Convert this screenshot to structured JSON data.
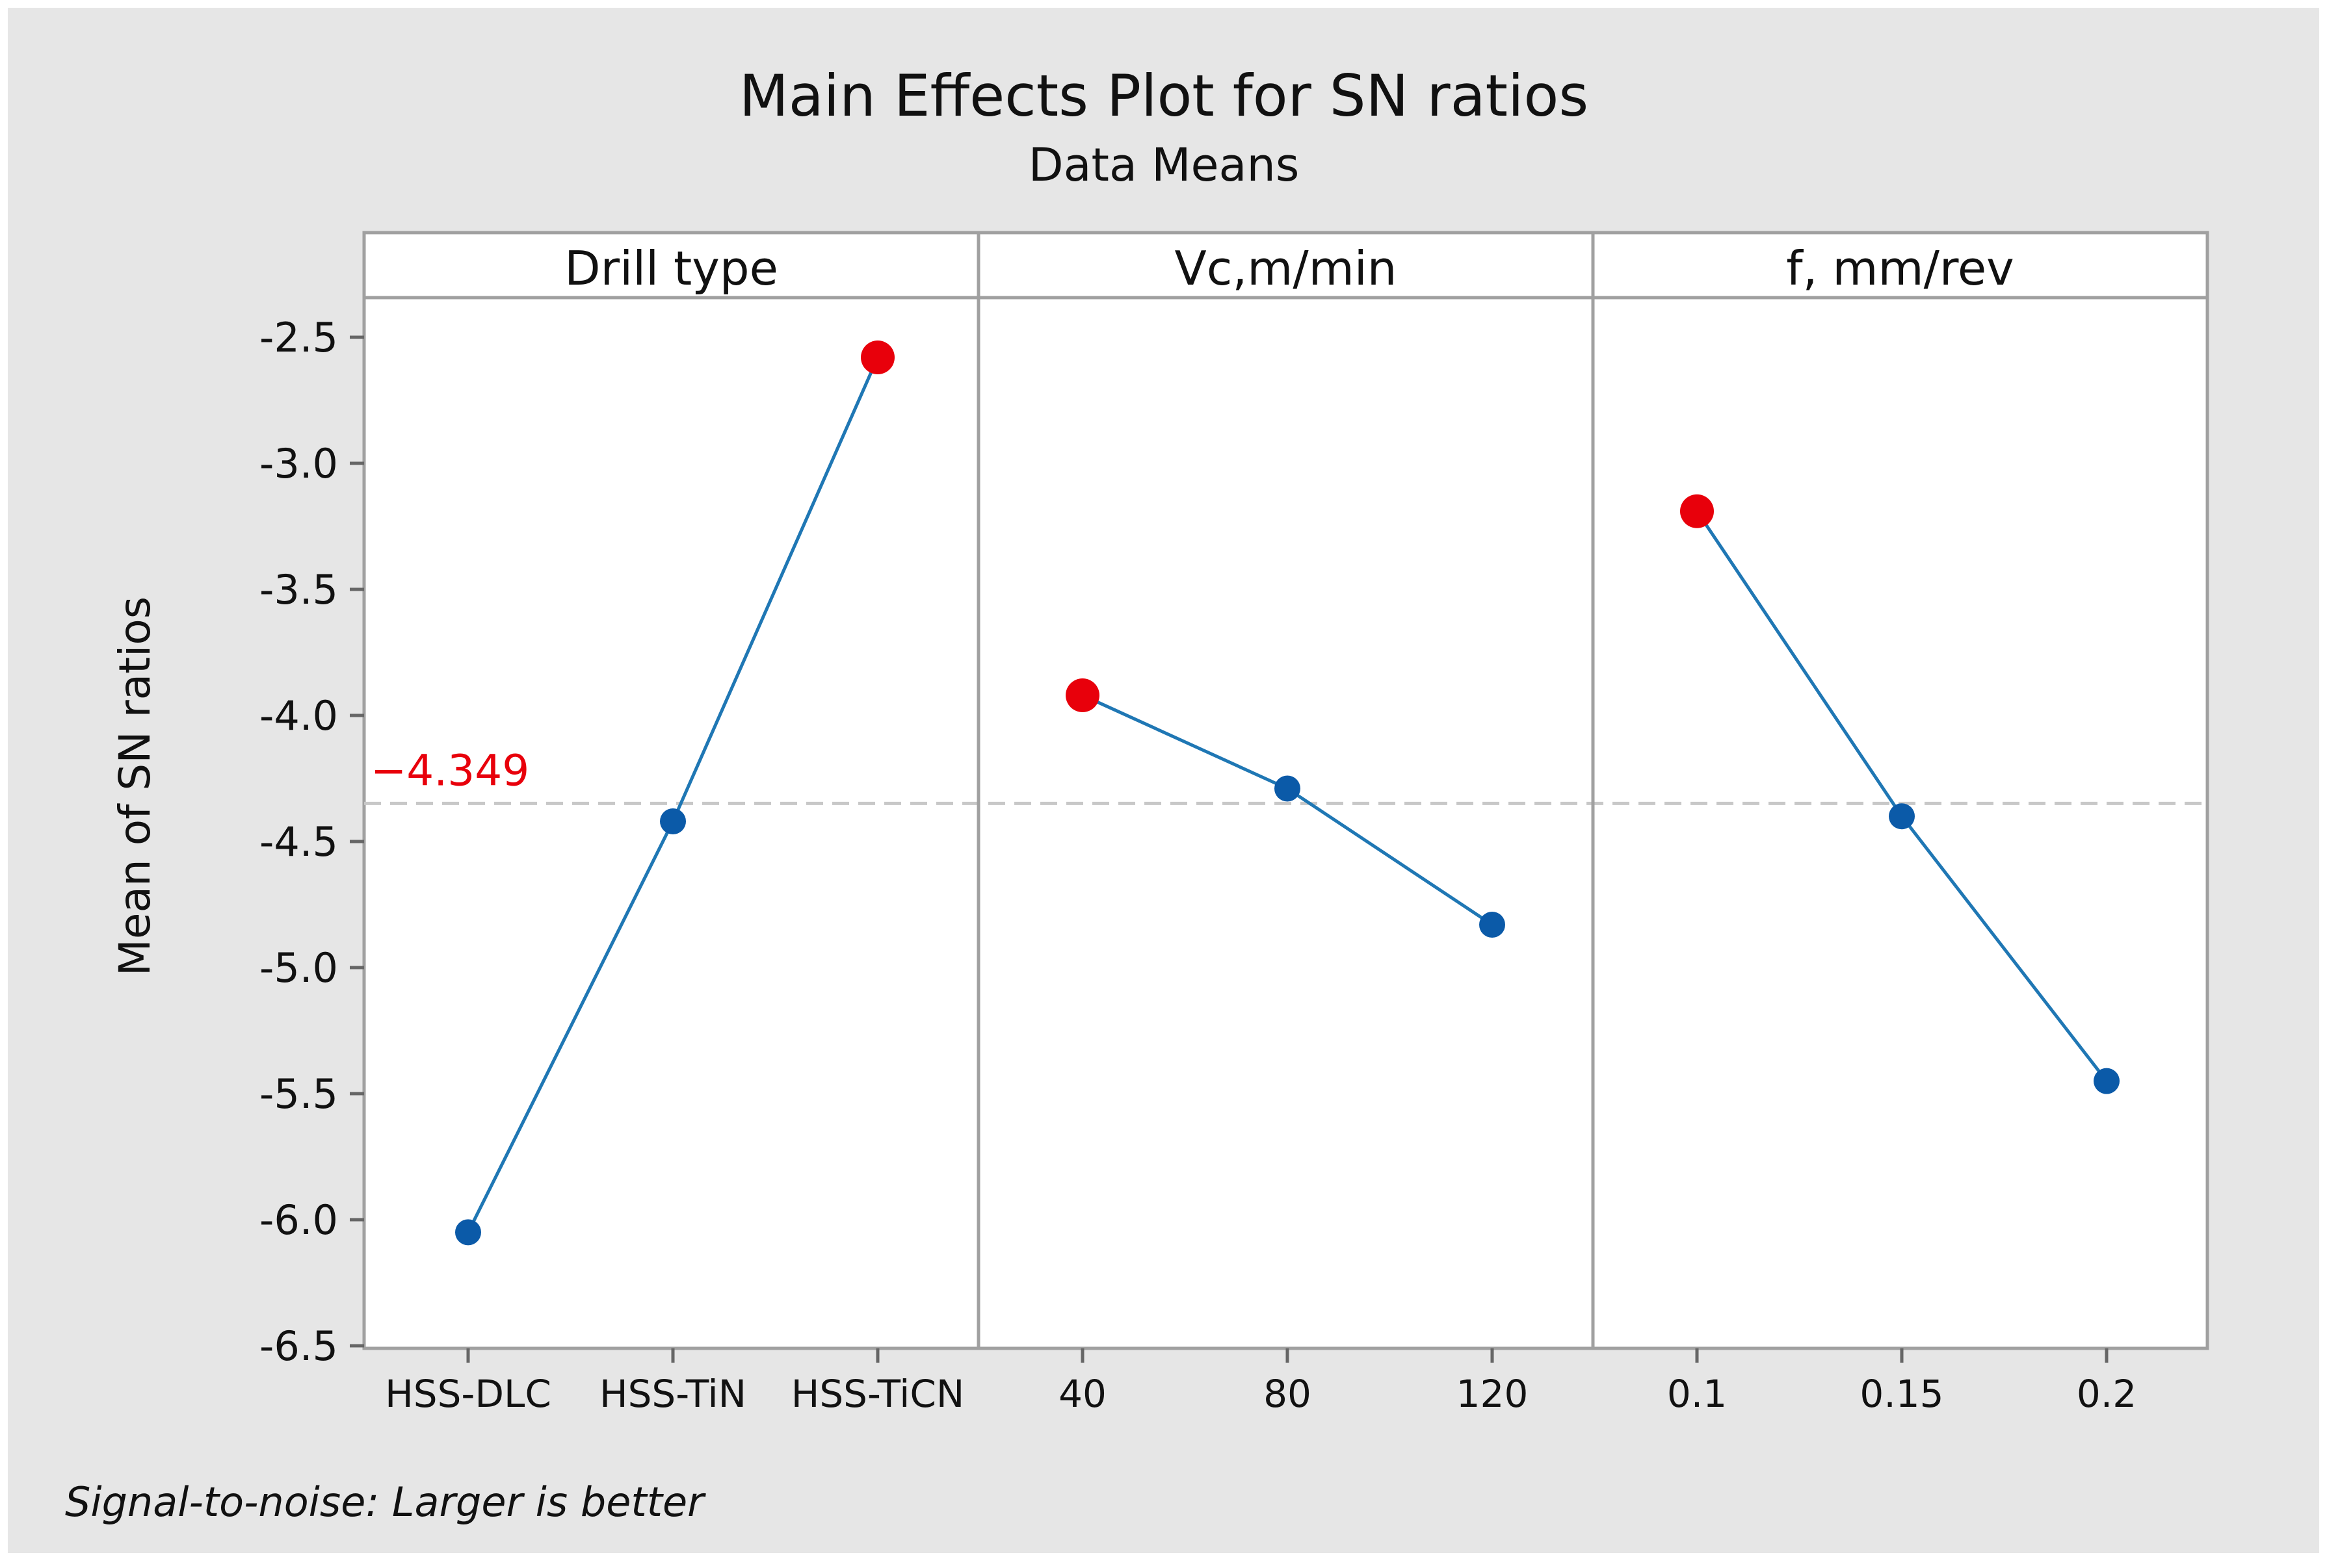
{
  "chart_data": {
    "type": "line",
    "title": "Main Effects Plot for SN ratios",
    "subtitle": "Data Means",
    "ylabel": "Mean of SN ratios",
    "ylim": [
      -6.5,
      -2.3
    ],
    "yticks": [
      "-2.5",
      "-3.0",
      "-3.5",
      "-4.0",
      "-4.5",
      "-5.0",
      "-5.5",
      "-6.0",
      "-6.5"
    ],
    "ytick_values": [
      -2.5,
      -3.0,
      -3.5,
      -4.0,
      -4.5,
      -5.0,
      -5.5,
      -6.0,
      -6.5
    ],
    "reference_line": {
      "value": -4.349,
      "label": "−4.349",
      "color": "#e8000b"
    },
    "footnote": "Signal-to-noise: Larger is better",
    "panels": [
      {
        "title": "Drill type",
        "categories": [
          "HSS-DLC",
          "HSS-TiN",
          "HSS-TiCN"
        ],
        "values": [
          -6.05,
          -4.42,
          -2.58
        ],
        "best_index": 2
      },
      {
        "title": "Vc,m/min",
        "categories": [
          "40",
          "80",
          "120"
        ],
        "values": [
          -3.92,
          -4.29,
          -4.83
        ],
        "best_index": 0
      },
      {
        "title": "f, mm/rev",
        "categories": [
          "0.1",
          "0.15",
          "0.2"
        ],
        "values": [
          -3.19,
          -4.4,
          -5.45
        ],
        "best_index": 0
      }
    ],
    "grid": false,
    "colors": {
      "line": "#1f77b4",
      "point": "#0b5aa8",
      "best_point": "#e8000b",
      "background": "#e6e6e6",
      "plot_background": "#ffffff"
    }
  }
}
